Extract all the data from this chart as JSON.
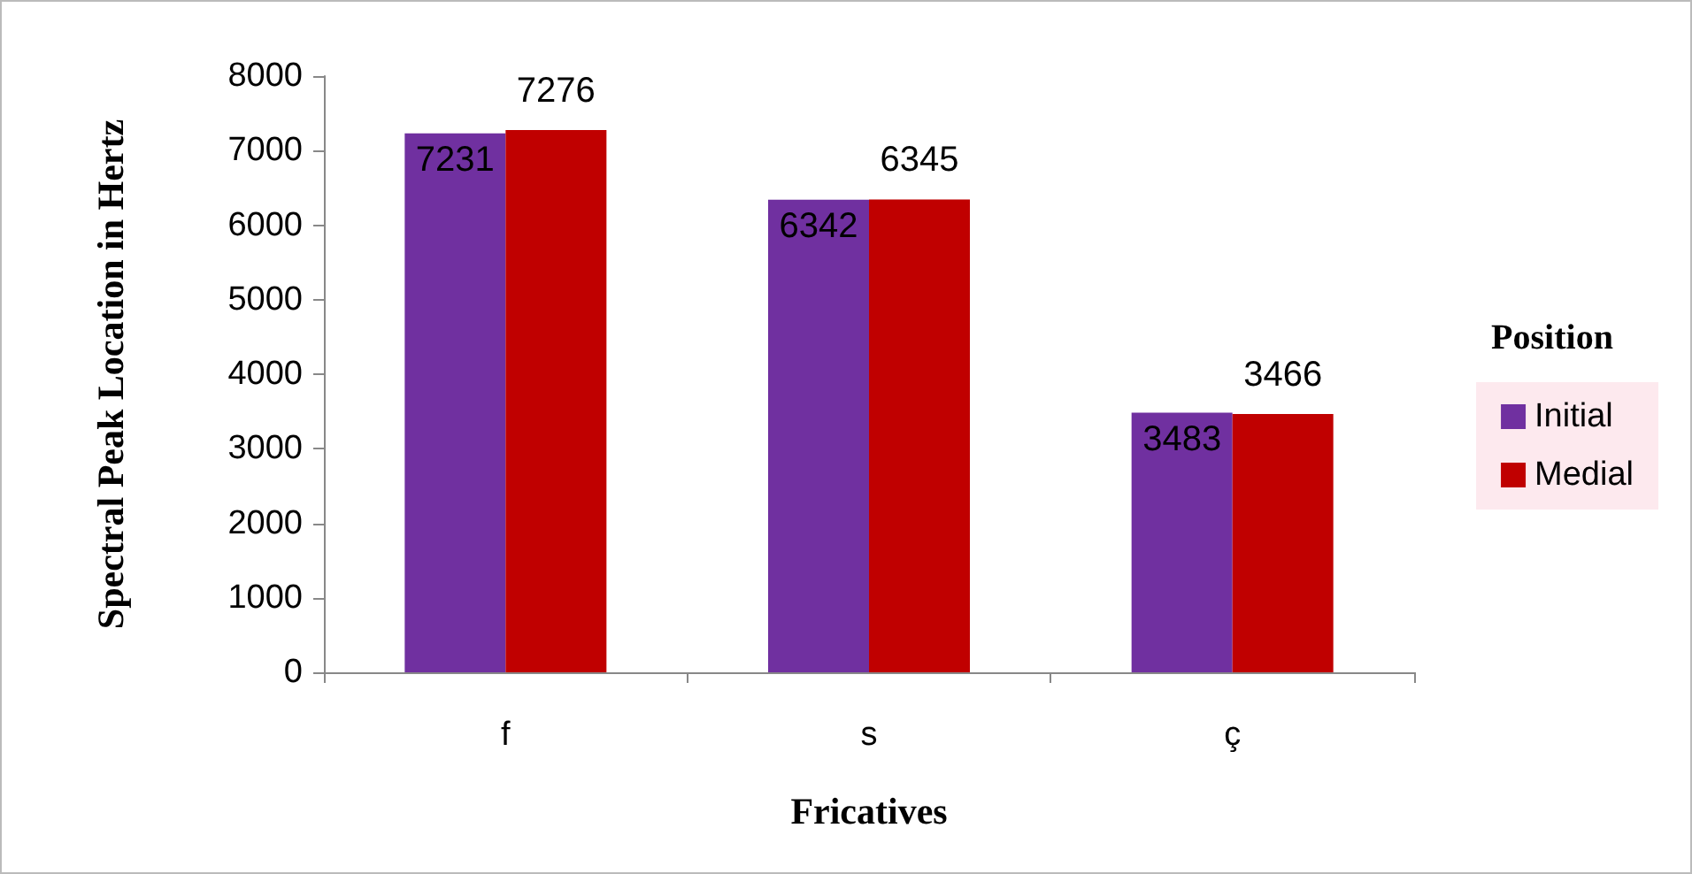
{
  "chart_data": {
    "type": "bar",
    "xlabel": "Fricatives",
    "ylabel": "Spectral Peak Location in Hertz",
    "legend_title": "Position",
    "categories": [
      "f",
      "s",
      "ç"
    ],
    "series": [
      {
        "name": "Initial",
        "color": "#7030a0",
        "values": [
          7231,
          6342,
          3483
        ]
      },
      {
        "name": "Medial",
        "color": "#c00000",
        "values": [
          7276,
          6345,
          3466
        ]
      }
    ],
    "ylim": [
      0,
      8000
    ],
    "yticks": [
      0,
      1000,
      2000,
      3000,
      4000,
      5000,
      6000,
      7000,
      8000
    ],
    "data_labels": true,
    "grid": false,
    "legend": "right"
  }
}
